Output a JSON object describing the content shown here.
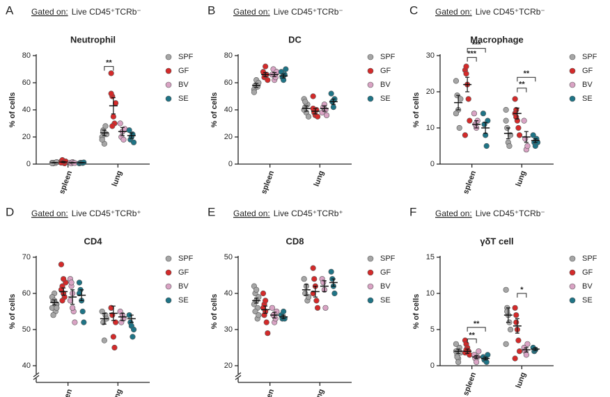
{
  "chart_data": [
    {
      "type": "dotplot",
      "panel": "A",
      "gate_prefix": "Gated on:",
      "gate": "Live CD45⁺TCRb⁻",
      "title": "Neutrophil",
      "y_label": "% of cells",
      "categories": [
        "spleen",
        "lung"
      ],
      "ylim": [
        0,
        80
      ],
      "yticks": [
        0,
        20,
        40,
        60,
        80
      ],
      "axis_break": false,
      "series": [
        {
          "name": "SPF",
          "color": "#a6a6a6",
          "values": [
            [
              1,
              0.5,
              1,
              0.8,
              1.5,
              0.5
            ],
            [
              20,
              25,
              15,
              28,
              22,
              18,
              24
            ]
          ],
          "mean": [
            1,
            23
          ],
          "sem": [
            0.2,
            2
          ]
        },
        {
          "name": "GF",
          "color": "#d42a2a",
          "values": [
            [
              2,
              3,
              1,
              0.5,
              2,
              1
            ],
            [
              67,
              50,
              35,
              30,
              45,
              52,
              28
            ]
          ],
          "mean": [
            1.5,
            43
          ],
          "sem": [
            0.4,
            6
          ]
        },
        {
          "name": "BV",
          "color": "#d9a3c4",
          "values": [
            [
              1,
              0.5,
              1.5,
              1,
              0.8
            ],
            [
              30,
              20,
              24,
              18,
              26
            ]
          ],
          "mean": [
            1,
            24
          ],
          "sem": [
            0.2,
            3
          ]
        },
        {
          "name": "SE",
          "color": "#1f7486",
          "values": [
            [
              0.5,
              1,
              1,
              0.8,
              1.2
            ],
            [
              25,
              18,
              20,
              22,
              16
            ]
          ],
          "mean": [
            1,
            21
          ],
          "sem": [
            0.2,
            2
          ]
        }
      ],
      "annotations": [
        "**"
      ]
    },
    {
      "type": "dotplot",
      "panel": "B",
      "gate_prefix": "Gated on:",
      "gate": "Live CD45⁺TCRb⁻",
      "title": "DC",
      "y_label": "% of cells",
      "categories": [
        "spleen",
        "lung"
      ],
      "ylim": [
        0,
        80
      ],
      "yticks": [
        0,
        20,
        40,
        60,
        80
      ],
      "axis_break": false,
      "series": [
        {
          "name": "SPF",
          "color": "#a6a6a6",
          "values": [
            [
              55,
              58,
              62,
              57,
              60,
              53
            ],
            [
              48,
              42,
              38,
              44,
              35,
              40,
              46
            ]
          ],
          "mean": [
            58,
            41
          ],
          "sem": [
            1.5,
            2
          ]
        },
        {
          "name": "GF",
          "color": "#d42a2a",
          "values": [
            [
              68,
              64,
              72,
              66,
              62
            ],
            [
              50,
              38,
              36,
              40,
              35,
              41
            ]
          ],
          "mean": [
            66,
            39
          ],
          "sem": [
            1.5,
            2
          ]
        },
        {
          "name": "BV",
          "color": "#d9a3c4",
          "values": [
            [
              66,
              70,
              62,
              64,
              68
            ],
            [
              38,
              42,
              44,
              40,
              36
            ]
          ],
          "mean": [
            66,
            41
          ],
          "sem": [
            1.5,
            2
          ]
        },
        {
          "name": "SE",
          "color": "#1f7486",
          "values": [
            [
              68,
              64,
              62,
              66,
              70
            ],
            [
              52,
              46,
              42,
              48
            ]
          ],
          "mean": [
            65,
            46
          ],
          "sem": [
            1.5,
            2
          ]
        }
      ],
      "annotations": []
    },
    {
      "type": "dotplot",
      "panel": "C",
      "gate_prefix": "Gated on:",
      "gate": "Live CD45⁺TCRb⁻",
      "title": "Macrophage",
      "y_label": "% of cells",
      "categories": [
        "spleen",
        "lung"
      ],
      "ylim": [
        0,
        30
      ],
      "yticks": [
        0,
        10,
        20,
        30
      ],
      "axis_break": false,
      "series": [
        {
          "name": "SPF",
          "color": "#a6a6a6",
          "values": [
            [
              23,
              19,
              15,
              10,
              18,
              14
            ],
            [
              15,
              10,
              6,
              5,
              8,
              12
            ]
          ],
          "mean": [
            17,
            8.5
          ],
          "sem": [
            2,
            1.5
          ]
        },
        {
          "name": "GF",
          "color": "#d42a2a",
          "values": [
            [
              26,
              25,
              22,
              18,
              12,
              8,
              27
            ],
            [
              18,
              15,
              12,
              10,
              8,
              14,
              13
            ]
          ],
          "mean": [
            22,
            14
          ],
          "sem": [
            2,
            1.5
          ]
        },
        {
          "name": "BV",
          "color": "#d9a3c4",
          "values": [
            [
              14,
              11,
              10,
              12
            ],
            [
              12,
              7,
              4,
              5
            ]
          ],
          "mean": [
            11,
            7.5
          ],
          "sem": [
            1,
            1.5
          ]
        },
        {
          "name": "SE",
          "color": "#1f7486",
          "values": [
            [
              14,
              11,
              8,
              5,
              12
            ],
            [
              8,
              6,
              5,
              7,
              6
            ]
          ],
          "mean": [
            10,
            6.5
          ],
          "sem": [
            1.5,
            0.5
          ]
        }
      ],
      "annotations": [
        "***",
        "***",
        "**",
        "**"
      ]
    },
    {
      "type": "dotplot",
      "panel": "D",
      "gate_prefix": "Gated on:",
      "gate": "Live CD45⁺TCRb⁺",
      "title": "CD4",
      "y_label": "% of cells",
      "categories": [
        "spleen",
        "lung"
      ],
      "ylim": [
        40,
        70
      ],
      "yticks": [
        40,
        50,
        60,
        70
      ],
      "axis_break": true,
      "series": [
        {
          "name": "SPF",
          "color": "#a6a6a6",
          "values": [
            [
              56,
              58,
              60,
              55,
              57,
              59,
              54,
              58,
              57,
              56
            ],
            [
              55,
              52,
              47,
              54,
              53
            ]
          ],
          "mean": [
            57.5,
            53
          ],
          "sem": [
            0.7,
            1.5
          ]
        },
        {
          "name": "GF",
          "color": "#d42a2a",
          "values": [
            [
              68,
              62,
              60,
              59,
              63,
              61,
              58,
              64
            ],
            [
              56,
              54,
              48,
              45,
              52,
              56
            ]
          ],
          "mean": [
            60.5,
            54.5
          ],
          "sem": [
            1,
            2
          ]
        },
        {
          "name": "BV",
          "color": "#d9a3c4",
          "values": [
            [
              64,
              62,
              60,
              55,
              52,
              58,
              63,
              56
            ],
            [
              55,
              52,
              54,
              53
            ]
          ],
          "mean": [
            59,
            53.5
          ],
          "sem": [
            2,
            1
          ]
        },
        {
          "name": "SE",
          "color": "#1f7486",
          "values": [
            [
              63,
              61,
              58,
              55,
              52,
              60
            ],
            [
              54,
              52,
              51,
              48,
              50
            ]
          ],
          "mean": [
            59.5,
            53
          ],
          "sem": [
            1.5,
            1
          ]
        }
      ],
      "annotations": []
    },
    {
      "type": "dotplot",
      "panel": "E",
      "gate_prefix": "Gated on:",
      "gate": "Live CD45⁺TCRb⁺",
      "title": "CD8",
      "y_label": "% of cells",
      "categories": [
        "spleen",
        "lung"
      ],
      "ylim": [
        20,
        50
      ],
      "yticks": [
        20,
        30,
        40,
        50
      ],
      "axis_break": true,
      "series": [
        {
          "name": "SPF",
          "color": "#a6a6a6",
          "values": [
            [
              42,
              40,
              38,
              36,
              39,
              37,
              35,
              41,
              33,
              34
            ],
            [
              44,
              40,
              42,
              38,
              39
            ]
          ],
          "mean": [
            38,
            41
          ],
          "sem": [
            0.7,
            1.5
          ]
        },
        {
          "name": "GF",
          "color": "#d42a2a",
          "values": [
            [
              40,
              37,
              35,
              32,
              29,
              36,
              34,
              38
            ],
            [
              47,
              44,
              42,
              38,
              36,
              40
            ]
          ],
          "mean": [
            35.5,
            40.5
          ],
          "sem": [
            1,
            1.5
          ]
        },
        {
          "name": "BV",
          "color": "#d9a3c4",
          "values": [
            [
              36,
              34,
              32,
              33,
              35
            ],
            [
              44,
              43,
              41,
              36
            ]
          ],
          "mean": [
            34,
            42
          ],
          "sem": [
            0.8,
            1.5
          ]
        },
        {
          "name": "SE",
          "color": "#1f7486",
          "values": [
            [
              34,
              33,
              35,
              33
            ],
            [
              46,
              44,
              42,
              40
            ]
          ],
          "mean": [
            33.5,
            43
          ],
          "sem": [
            0.5,
            1
          ]
        }
      ],
      "annotations": []
    },
    {
      "type": "dotplot",
      "panel": "F",
      "gate_prefix": "Gated on:",
      "gate": "Live CD45⁺TCRb⁻",
      "title": "γδT cell",
      "y_label": "% of cells",
      "categories": [
        "spleen",
        "lung"
      ],
      "ylim": [
        0,
        15
      ],
      "yticks": [
        0,
        5,
        10,
        15
      ],
      "axis_break": false,
      "series": [
        {
          "name": "SPF",
          "color": "#a6a6a6",
          "values": [
            [
              2,
              1.5,
              1,
              2.5,
              1.8,
              3,
              1.2,
              0.5
            ],
            [
              10.5,
              8,
              7,
              6,
              5,
              3,
              7.5
            ]
          ],
          "mean": [
            2,
            7
          ],
          "sem": [
            0.3,
            1
          ]
        },
        {
          "name": "GF",
          "color": "#d42a2a",
          "values": [
            [
              3.5,
              3,
              2.5,
              2,
              1.5,
              1.8,
              2.2
            ],
            [
              8,
              6,
              5,
              3.5,
              2,
              1,
              7
            ]
          ],
          "mean": [
            2,
            5.5
          ],
          "sem": [
            0.3,
            1
          ]
        },
        {
          "name": "BV",
          "color": "#d9a3c4",
          "values": [
            [
              1.5,
              1,
              0.5,
              1.2,
              2
            ],
            [
              2.5,
              2,
              1.5,
              3
            ]
          ],
          "mean": [
            1.2,
            2.2
          ],
          "sem": [
            0.2,
            0.3
          ]
        },
        {
          "name": "SE",
          "color": "#1f7486",
          "values": [
            [
              1.2,
              0.8,
              1,
              0.5,
              1.5
            ],
            [
              2.5,
              2,
              2.2
            ]
          ],
          "mean": [
            1,
            2.3
          ],
          "sem": [
            0.2,
            0.2
          ]
        }
      ],
      "annotations": [
        "**",
        "**",
        "*"
      ]
    }
  ]
}
